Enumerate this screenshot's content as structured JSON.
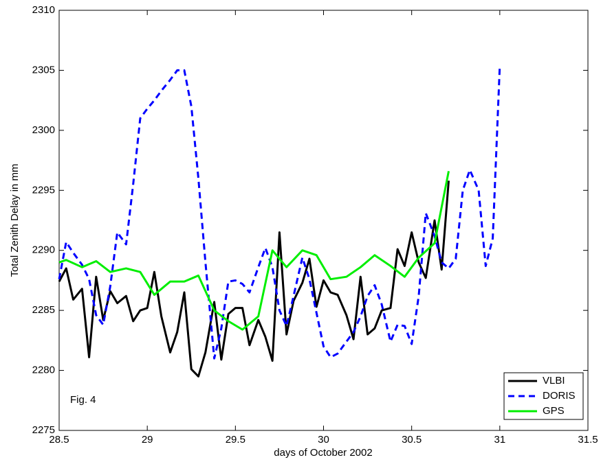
{
  "chart_data": {
    "type": "line",
    "xlabel": "days of October 2002",
    "ylabel": "Total Zenith Delay in mm",
    "annotation": "Fig. 4",
    "xlim": [
      28.5,
      31.5
    ],
    "xticks": [
      28.5,
      29,
      29.5,
      30,
      30.5,
      31,
      31.5
    ],
    "ylim": [
      2275,
      2310
    ],
    "yticks": [
      2275,
      2280,
      2285,
      2290,
      2295,
      2300,
      2305,
      2310
    ],
    "grid": false,
    "legend": "lower right",
    "series": [
      {
        "name": "VLBI",
        "color": "#000000",
        "linestyle": "solid",
        "x": [
          28.5,
          28.54,
          28.58,
          28.63,
          28.67,
          28.71,
          28.75,
          28.79,
          28.83,
          28.88,
          28.92,
          28.96,
          29.0,
          29.04,
          29.08,
          29.13,
          29.17,
          29.21,
          29.25,
          29.29,
          29.33,
          29.38,
          29.42,
          29.46,
          29.5,
          29.54,
          29.58,
          29.63,
          29.67,
          29.71,
          29.75,
          29.79,
          29.83,
          29.88,
          29.92,
          29.96,
          30.0,
          30.04,
          30.08,
          30.13,
          30.17,
          30.21,
          30.25,
          30.29,
          30.33,
          30.38,
          30.42,
          30.46,
          30.5,
          30.54,
          30.58,
          30.63,
          30.67,
          30.71
        ],
        "values": [
          2287.4,
          2288.5,
          2285.9,
          2286.8,
          2281.1,
          2287.8,
          2284.2,
          2286.6,
          2285.6,
          2286.2,
          2284.1,
          2285.0,
          2285.2,
          2288.2,
          2284.5,
          2281.5,
          2283.2,
          2286.5,
          2280.1,
          2279.5,
          2281.5,
          2285.7,
          2280.9,
          2284.7,
          2285.2,
          2285.2,
          2282.1,
          2284.2,
          2282.8,
          2280.8,
          2291.5,
          2283.0,
          2285.8,
          2287.3,
          2289.3,
          2285.3,
          2287.5,
          2286.5,
          2286.3,
          2284.6,
          2282.6,
          2287.8,
          2283.0,
          2283.5,
          2285.0,
          2285.2,
          2290.1,
          2288.7,
          2291.5,
          2289.0,
          2287.7,
          2292.5,
          2288.4,
          2295.8
        ]
      },
      {
        "name": "DORIS",
        "color": "#0000ff",
        "linestyle": "dashed",
        "x": [
          28.5,
          28.54,
          28.58,
          28.63,
          28.67,
          28.71,
          28.75,
          28.79,
          28.83,
          28.88,
          28.92,
          28.96,
          29.0,
          29.04,
          29.08,
          29.13,
          29.17,
          29.21,
          29.25,
          29.29,
          29.33,
          29.38,
          29.42,
          29.46,
          29.5,
          29.54,
          29.58,
          29.63,
          29.67,
          29.71,
          29.75,
          29.79,
          29.83,
          29.88,
          29.92,
          29.96,
          30.0,
          30.04,
          30.08,
          30.13,
          30.17,
          30.21,
          30.25,
          30.29,
          30.33,
          30.38,
          30.42,
          30.46,
          30.5,
          30.54,
          30.58,
          30.63,
          30.67,
          30.71,
          30.75,
          30.79,
          30.83,
          30.88,
          30.92,
          30.96,
          31.0
        ],
        "values": [
          2287.6,
          2290.7,
          2289.8,
          2288.8,
          2287.6,
          2284.6,
          2283.8,
          2287.0,
          2291.5,
          2290.5,
          2295.5,
          2301.0,
          2301.8,
          2302.5,
          2303.3,
          2304.2,
          2305.0,
          2305.0,
          2302.0,
          2296.0,
          2289.0,
          2281.0,
          2283.5,
          2287.4,
          2287.5,
          2287.2,
          2286.5,
          2288.6,
          2290.2,
          2288.6,
          2285.0,
          2283.7,
          2286.2,
          2289.4,
          2287.6,
          2284.8,
          2282.0,
          2281.1,
          2281.4,
          2282.4,
          2283.2,
          2284.5,
          2286.2,
          2287.1,
          2285.5,
          2282.4,
          2283.8,
          2283.7,
          2282.2,
          2286.2,
          2293.1,
          2291.2,
          2289.0,
          2288.5,
          2289.3,
          2295.0,
          2296.7,
          2295.0,
          2288.7,
          2291.0,
          2305.4
        ]
      },
      {
        "name": "GPS",
        "color": "#00ee00",
        "linestyle": "solid",
        "x": [
          28.5,
          28.54,
          28.63,
          28.71,
          28.79,
          28.88,
          28.96,
          29.04,
          29.13,
          29.21,
          29.29,
          29.38,
          29.46,
          29.54,
          29.63,
          29.71,
          29.79,
          29.88,
          29.96,
          30.04,
          30.13,
          30.21,
          30.29,
          30.38,
          30.46,
          30.54,
          30.63,
          30.71
        ],
        "values": [
          2289.0,
          2289.2,
          2288.6,
          2289.1,
          2288.2,
          2288.5,
          2288.2,
          2286.3,
          2287.4,
          2287.4,
          2287.9,
          2285.0,
          2284.1,
          2283.4,
          2284.5,
          2290.0,
          2288.6,
          2290.0,
          2289.6,
          2287.6,
          2287.8,
          2288.6,
          2289.6,
          2288.7,
          2287.8,
          2289.4,
          2290.6,
          2296.6
        ]
      }
    ]
  }
}
